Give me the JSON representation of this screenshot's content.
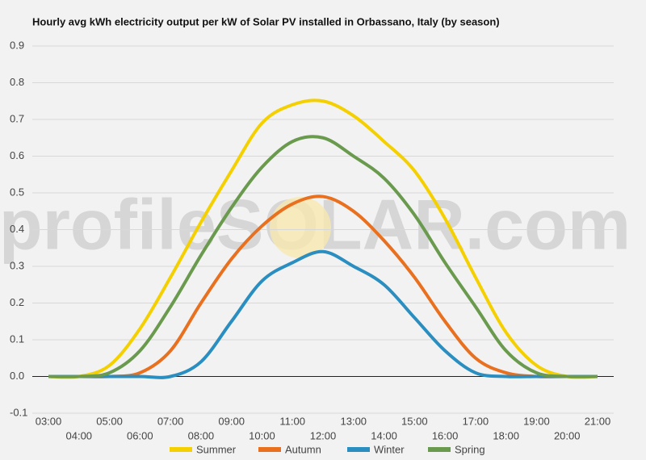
{
  "chart_data": {
    "type": "line",
    "title": "Hourly avg kWh electricity output per kW of Solar PV installed in Orbassano, Italy (by season)",
    "watermark": "profileSOLAR.com",
    "categories": [
      "03:00",
      "04:00",
      "05:00",
      "06:00",
      "07:00",
      "08:00",
      "09:00",
      "10:00",
      "11:00",
      "12:00",
      "13:00",
      "14:00",
      "15:00",
      "16:00",
      "17:00",
      "18:00",
      "19:00",
      "20:00",
      "21:00"
    ],
    "series": [
      {
        "name": "Summer",
        "color": "#f5d000",
        "values": [
          0,
          0,
          0.03,
          0.13,
          0.27,
          0.42,
          0.56,
          0.69,
          0.74,
          0.75,
          0.71,
          0.64,
          0.56,
          0.43,
          0.27,
          0.12,
          0.03,
          0,
          0
        ]
      },
      {
        "name": "Autumn",
        "color": "#e8701e",
        "values": [
          0,
          0,
          0,
          0.01,
          0.07,
          0.2,
          0.32,
          0.41,
          0.47,
          0.49,
          0.45,
          0.37,
          0.27,
          0.15,
          0.05,
          0.01,
          0,
          0,
          0
        ]
      },
      {
        "name": "Winter",
        "color": "#2b8ec0",
        "values": [
          0,
          0,
          0,
          0,
          0,
          0.04,
          0.15,
          0.26,
          0.31,
          0.34,
          0.3,
          0.25,
          0.16,
          0.07,
          0.01,
          0,
          0,
          0,
          0
        ]
      },
      {
        "name": "Spring",
        "color": "#6a9a4e",
        "values": [
          0,
          0,
          0.01,
          0.07,
          0.19,
          0.33,
          0.46,
          0.57,
          0.64,
          0.65,
          0.6,
          0.54,
          0.44,
          0.31,
          0.19,
          0.07,
          0.01,
          0,
          0
        ]
      }
    ],
    "ylim": [
      -0.1,
      0.9
    ],
    "yticks": [
      -0.1,
      {
        "value": 0,
        "label": "0.0"
      },
      0.1,
      0.2,
      0.3,
      0.4,
      0.5,
      0.6,
      0.7,
      0.8,
      0.9
    ],
    "grid": true,
    "legend": "bottom"
  }
}
